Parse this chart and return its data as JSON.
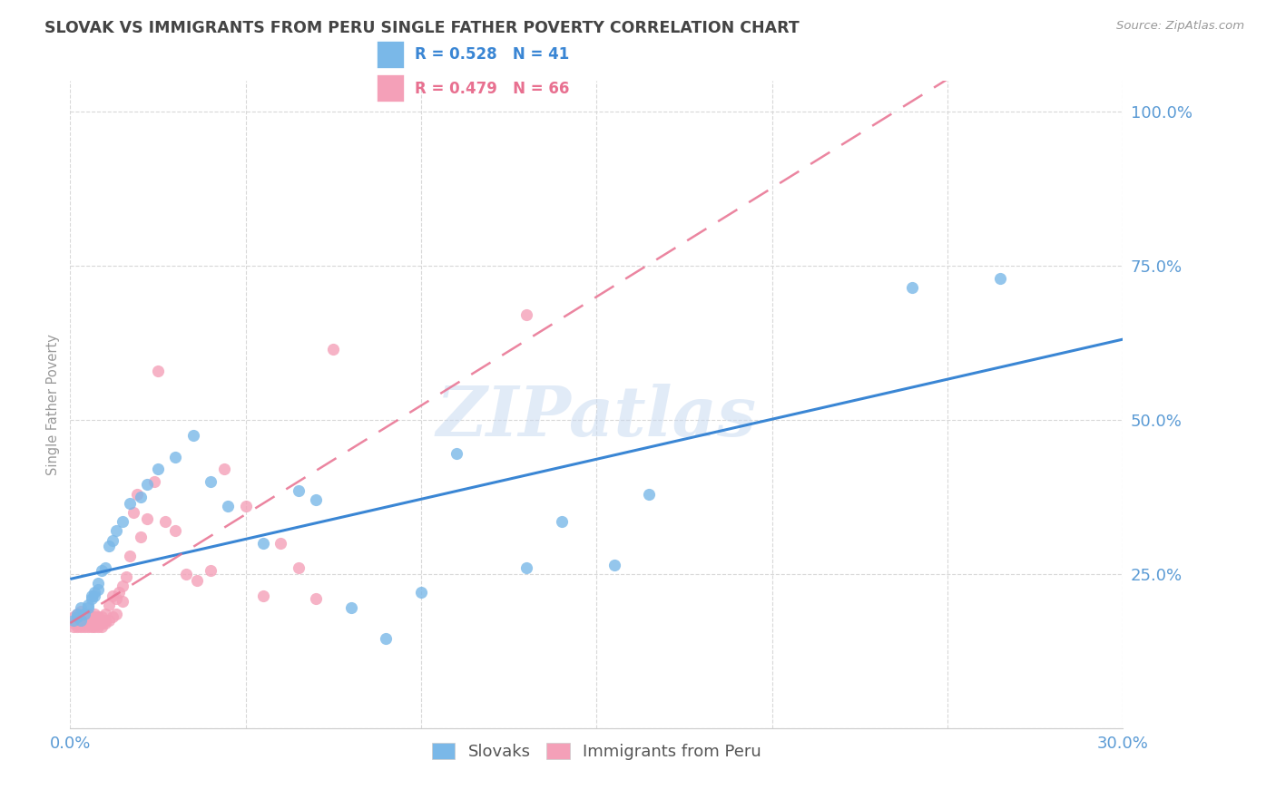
{
  "title": "SLOVAK VS IMMIGRANTS FROM PERU SINGLE FATHER POVERTY CORRELATION CHART",
  "source": "Source: ZipAtlas.com",
  "ylabel": "Single Father Poverty",
  "xlim": [
    0.0,
    0.3
  ],
  "ylim": [
    0.0,
    1.05
  ],
  "xticks": [
    0.0,
    0.05,
    0.1,
    0.15,
    0.2,
    0.25,
    0.3
  ],
  "xticklabels": [
    "0.0%",
    "",
    "",
    "",
    "",
    "",
    "30.0%"
  ],
  "ytick_positions": [
    0.0,
    0.25,
    0.5,
    0.75,
    1.0
  ],
  "yticklabels": [
    "",
    "25.0%",
    "50.0%",
    "75.0%",
    "100.0%"
  ],
  "legend_labels": [
    "Slovaks",
    "Immigrants from Peru"
  ],
  "slovaks_R": "0.528",
  "slovaks_N": "41",
  "peru_R": "0.479",
  "peru_N": "66",
  "slovaks_color": "#7ab8e8",
  "peru_color": "#f4a0b8",
  "slovaks_line_color": "#3a86d4",
  "peru_line_color": "#e87090",
  "watermark": "ZIPatlas",
  "slovaks_x": [
    0.001,
    0.002,
    0.002,
    0.003,
    0.003,
    0.004,
    0.005,
    0.005,
    0.006,
    0.006,
    0.007,
    0.007,
    0.008,
    0.008,
    0.009,
    0.01,
    0.011,
    0.012,
    0.013,
    0.015,
    0.017,
    0.02,
    0.022,
    0.025,
    0.03,
    0.035,
    0.04,
    0.045,
    0.055,
    0.065,
    0.07,
    0.08,
    0.09,
    0.1,
    0.11,
    0.13,
    0.14,
    0.155,
    0.165,
    0.24,
    0.265
  ],
  "slovaks_y": [
    0.175,
    0.18,
    0.185,
    0.175,
    0.195,
    0.185,
    0.195,
    0.2,
    0.21,
    0.215,
    0.22,
    0.215,
    0.225,
    0.235,
    0.255,
    0.26,
    0.295,
    0.305,
    0.32,
    0.335,
    0.365,
    0.375,
    0.395,
    0.42,
    0.44,
    0.475,
    0.4,
    0.36,
    0.3,
    0.385,
    0.37,
    0.195,
    0.145,
    0.22,
    0.445,
    0.26,
    0.335,
    0.265,
    0.38,
    0.715,
    0.73
  ],
  "peru_x": [
    0.001,
    0.001,
    0.001,
    0.002,
    0.002,
    0.002,
    0.002,
    0.003,
    0.003,
    0.003,
    0.003,
    0.003,
    0.004,
    0.004,
    0.004,
    0.004,
    0.005,
    0.005,
    0.005,
    0.005,
    0.006,
    0.006,
    0.006,
    0.007,
    0.007,
    0.007,
    0.007,
    0.008,
    0.008,
    0.008,
    0.009,
    0.009,
    0.009,
    0.01,
    0.01,
    0.01,
    0.011,
    0.011,
    0.012,
    0.012,
    0.013,
    0.013,
    0.014,
    0.015,
    0.015,
    0.016,
    0.017,
    0.018,
    0.019,
    0.02,
    0.022,
    0.024,
    0.025,
    0.027,
    0.03,
    0.033,
    0.036,
    0.04,
    0.044,
    0.05,
    0.055,
    0.06,
    0.065,
    0.07,
    0.075,
    0.13
  ],
  "peru_y": [
    0.165,
    0.17,
    0.18,
    0.165,
    0.17,
    0.175,
    0.185,
    0.165,
    0.17,
    0.175,
    0.18,
    0.19,
    0.165,
    0.17,
    0.18,
    0.185,
    0.165,
    0.17,
    0.175,
    0.185,
    0.165,
    0.17,
    0.18,
    0.165,
    0.17,
    0.18,
    0.185,
    0.165,
    0.17,
    0.18,
    0.165,
    0.17,
    0.18,
    0.17,
    0.175,
    0.185,
    0.175,
    0.2,
    0.18,
    0.215,
    0.185,
    0.21,
    0.22,
    0.205,
    0.23,
    0.245,
    0.28,
    0.35,
    0.38,
    0.31,
    0.34,
    0.4,
    0.58,
    0.335,
    0.32,
    0.25,
    0.24,
    0.255,
    0.42,
    0.36,
    0.215,
    0.3,
    0.26,
    0.21,
    0.615,
    0.67
  ],
  "background_color": "#ffffff",
  "grid_color": "#d8d8d8",
  "axis_label_color": "#5b9bd5",
  "title_color": "#444444"
}
